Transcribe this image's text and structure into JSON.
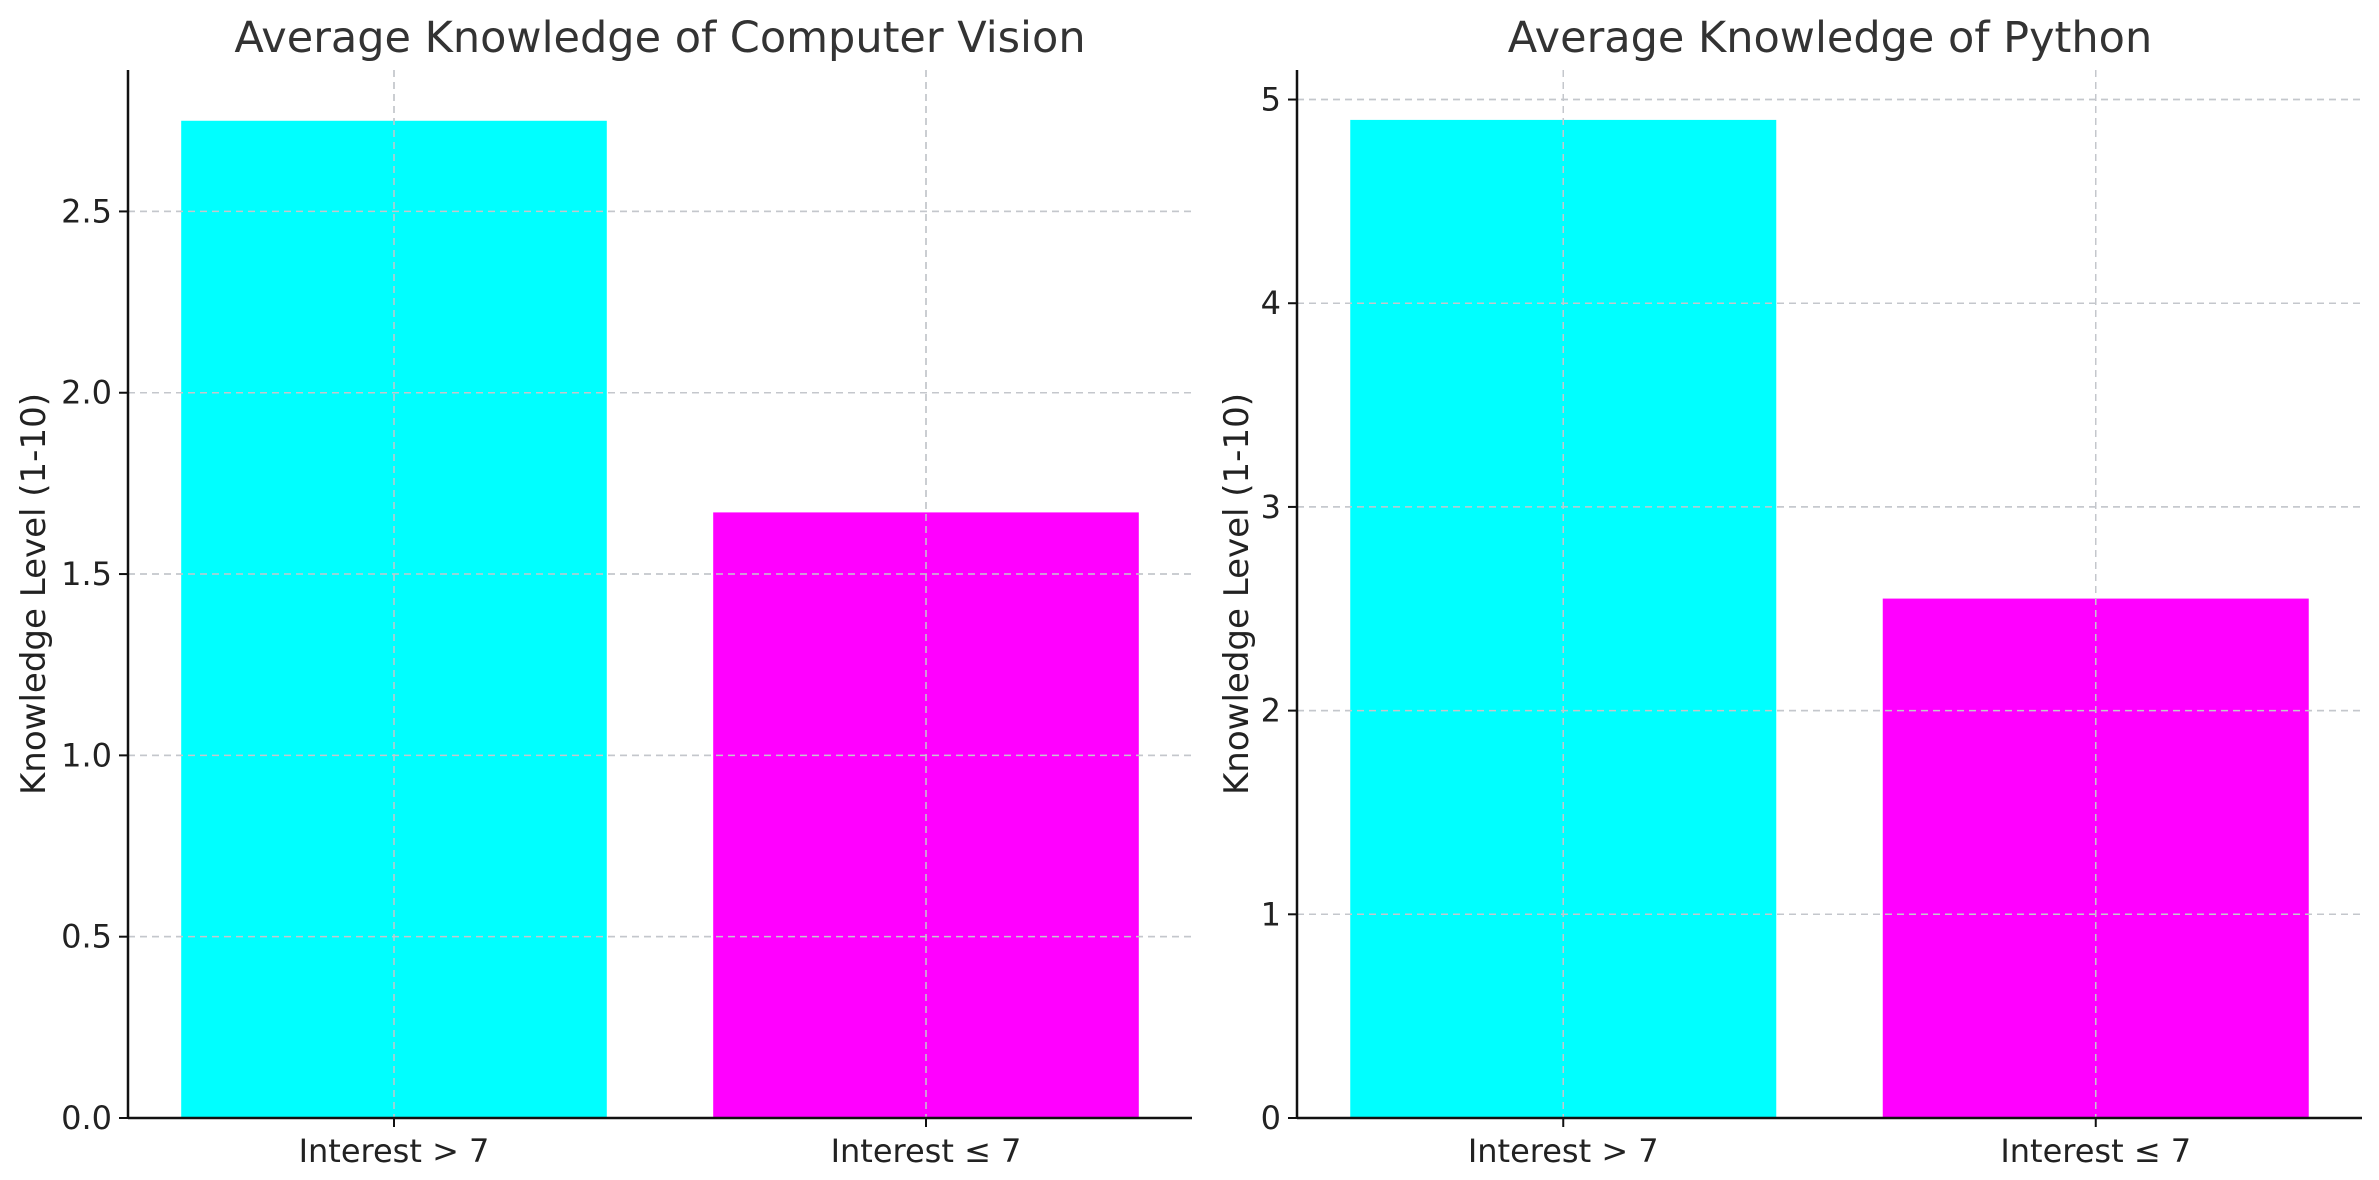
{
  "chart_data": [
    {
      "type": "bar",
      "title": "Average Knowledge of Computer Vision",
      "ylabel": "Knowledge Level (1-10)",
      "xlabel": "",
      "categories": [
        "Interest > 7",
        "Interest ≤ 7"
      ],
      "values": [
        2.75,
        1.67
      ],
      "colors": [
        "#00ffff",
        "#ff00ff"
      ],
      "ylim": [
        0,
        2.89
      ],
      "yticks": [
        0.0,
        0.5,
        1.0,
        1.5,
        2.0,
        2.5
      ],
      "ytick_labels": [
        "0.0",
        "0.5",
        "1.0",
        "1.5",
        "2.0",
        "2.5"
      ],
      "grid": true
    },
    {
      "type": "bar",
      "title": "Average Knowledge of Python",
      "ylabel": "Knowledge Level (1-10)",
      "xlabel": "",
      "categories": [
        "Interest > 7",
        "Interest ≤ 7"
      ],
      "values": [
        4.9,
        2.55
      ],
      "colors": [
        "#00ffff",
        "#ff00ff"
      ],
      "ylim": [
        0,
        5.145
      ],
      "yticks": [
        0,
        1,
        2,
        3,
        4,
        5
      ],
      "ytick_labels": [
        "0",
        "1",
        "2",
        "3",
        "4",
        "5"
      ],
      "grid": true
    }
  ]
}
